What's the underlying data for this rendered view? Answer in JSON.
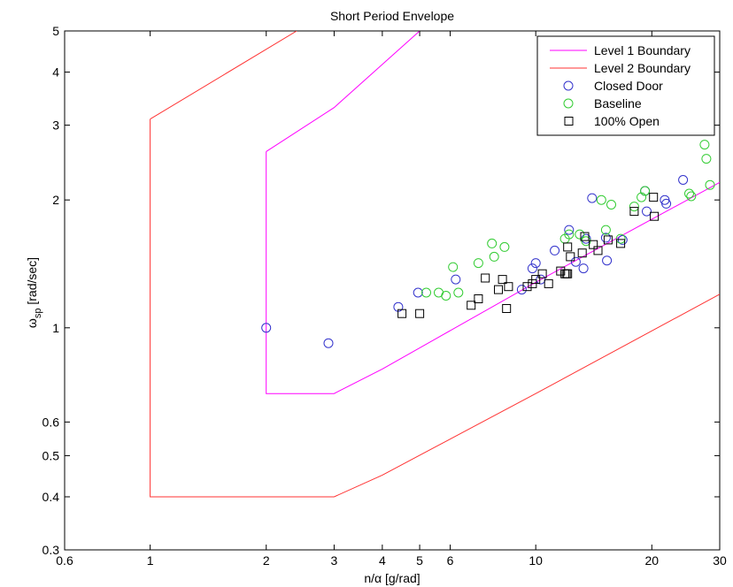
{
  "chart_data": {
    "type": "scatter",
    "title": "Short Period Envelope",
    "xlabel": "n/α [g/rad]",
    "ylabel_main": "ω",
    "ylabel_sub": "sp",
    "ylabel_tail": " [rad/sec]",
    "xscale": "log",
    "yscale": "log",
    "xlim": [
      0.6,
      30
    ],
    "ylim": [
      0.3,
      5
    ],
    "grid": false,
    "legend_position": "top-right",
    "x_ticks": [
      0.6,
      1,
      2,
      3,
      4,
      5,
      6,
      10,
      20,
      30
    ],
    "x_tick_labels": [
      "0.6",
      "1",
      "2",
      "3",
      "4",
      "5",
      "6",
      "10",
      "20",
      "30"
    ],
    "y_ticks": [
      0.3,
      0.4,
      0.5,
      0.6,
      1,
      2,
      3,
      4,
      5
    ],
    "y_tick_labels": [
      "0.3",
      "0.4",
      "0.5",
      "0.6",
      "1",
      "2",
      "3",
      "4",
      "5"
    ],
    "lines": [
      {
        "name": "Level 1 Boundary",
        "color": "#ff00ff",
        "points": [
          [
            2,
            2.6
          ],
          [
            2,
            0.7
          ],
          [
            3,
            0.7
          ],
          [
            4,
            0.8
          ],
          [
            10,
            1.28
          ],
          [
            30,
            2.2
          ]
        ],
        "upper": [
          [
            2,
            2.6
          ],
          [
            3,
            3.3
          ],
          [
            5,
            5
          ]
        ]
      },
      {
        "name": "Level 2 Boundary",
        "color": "#ff3333",
        "points": [
          [
            1,
            3.1
          ],
          [
            1,
            0.4
          ],
          [
            3,
            0.4
          ],
          [
            4,
            0.45
          ],
          [
            10,
            0.7
          ],
          [
            30,
            1.2
          ]
        ],
        "upper": [
          [
            1,
            3.1
          ],
          [
            2.4,
            5
          ]
        ]
      }
    ],
    "series": [
      {
        "name": "Closed Door",
        "marker": "circle",
        "color": "#3333cc",
        "points": [
          [
            2,
            1.0
          ],
          [
            2.9,
            0.92
          ],
          [
            4.4,
            1.12
          ],
          [
            4.95,
            1.21
          ],
          [
            6.2,
            1.3
          ],
          [
            9.2,
            1.23
          ],
          [
            9.8,
            1.38
          ],
          [
            10.0,
            1.42
          ],
          [
            10.3,
            1.3
          ],
          [
            11.2,
            1.52
          ],
          [
            12.2,
            1.7
          ],
          [
            12.7,
            1.43
          ],
          [
            13.3,
            1.38
          ],
          [
            14.0,
            2.02
          ],
          [
            13.5,
            1.62
          ],
          [
            15.2,
            1.63
          ],
          [
            15.3,
            1.44
          ],
          [
            16.8,
            1.61
          ],
          [
            19.2,
            2.1
          ],
          [
            19.4,
            1.88
          ],
          [
            24.1,
            2.23
          ],
          [
            21.6,
            2.0
          ],
          [
            21.8,
            1.96
          ]
        ]
      },
      {
        "name": "Baseline",
        "marker": "circle",
        "color": "#33cc33",
        "points": [
          [
            5.2,
            1.21
          ],
          [
            5.6,
            1.21
          ],
          [
            5.85,
            1.19
          ],
          [
            6.1,
            1.39
          ],
          [
            6.3,
            1.21
          ],
          [
            7.1,
            1.42
          ],
          [
            7.7,
            1.58
          ],
          [
            7.8,
            1.47
          ],
          [
            8.3,
            1.55
          ],
          [
            11.9,
            1.62
          ],
          [
            12.2,
            1.66
          ],
          [
            13.0,
            1.66
          ],
          [
            13.5,
            1.6
          ],
          [
            14.8,
            2.0
          ],
          [
            15.2,
            1.7
          ],
          [
            15.7,
            1.95
          ],
          [
            16.6,
            1.62
          ],
          [
            18.0,
            1.93
          ],
          [
            18.8,
            2.03
          ],
          [
            19.2,
            2.1
          ],
          [
            25.0,
            2.07
          ],
          [
            25.3,
            2.04
          ],
          [
            27.4,
            2.7
          ],
          [
            27.7,
            2.5
          ],
          [
            28.3,
            2.17
          ]
        ]
      },
      {
        "name": "100% Open",
        "marker": "square",
        "color": "#000000",
        "points": [
          [
            4.5,
            1.08
          ],
          [
            5.0,
            1.08
          ],
          [
            6.8,
            1.13
          ],
          [
            7.1,
            1.17
          ],
          [
            7.4,
            1.31
          ],
          [
            8.0,
            1.23
          ],
          [
            8.2,
            1.3
          ],
          [
            8.4,
            1.11
          ],
          [
            8.5,
            1.25
          ],
          [
            9.5,
            1.25
          ],
          [
            9.8,
            1.27
          ],
          [
            10.0,
            1.3
          ],
          [
            10.4,
            1.34
          ],
          [
            10.8,
            1.27
          ],
          [
            11.6,
            1.36
          ],
          [
            11.9,
            1.34
          ],
          [
            12.0,
            1.34
          ],
          [
            12.1,
            1.34
          ],
          [
            12.1,
            1.55
          ],
          [
            12.3,
            1.47
          ],
          [
            13.2,
            1.5
          ],
          [
            13.4,
            1.64
          ],
          [
            14.1,
            1.57
          ],
          [
            14.5,
            1.52
          ],
          [
            15.4,
            1.61
          ],
          [
            16.6,
            1.58
          ],
          [
            18.0,
            1.88
          ],
          [
            20.2,
            2.03
          ],
          [
            20.3,
            1.83
          ]
        ]
      }
    ]
  }
}
